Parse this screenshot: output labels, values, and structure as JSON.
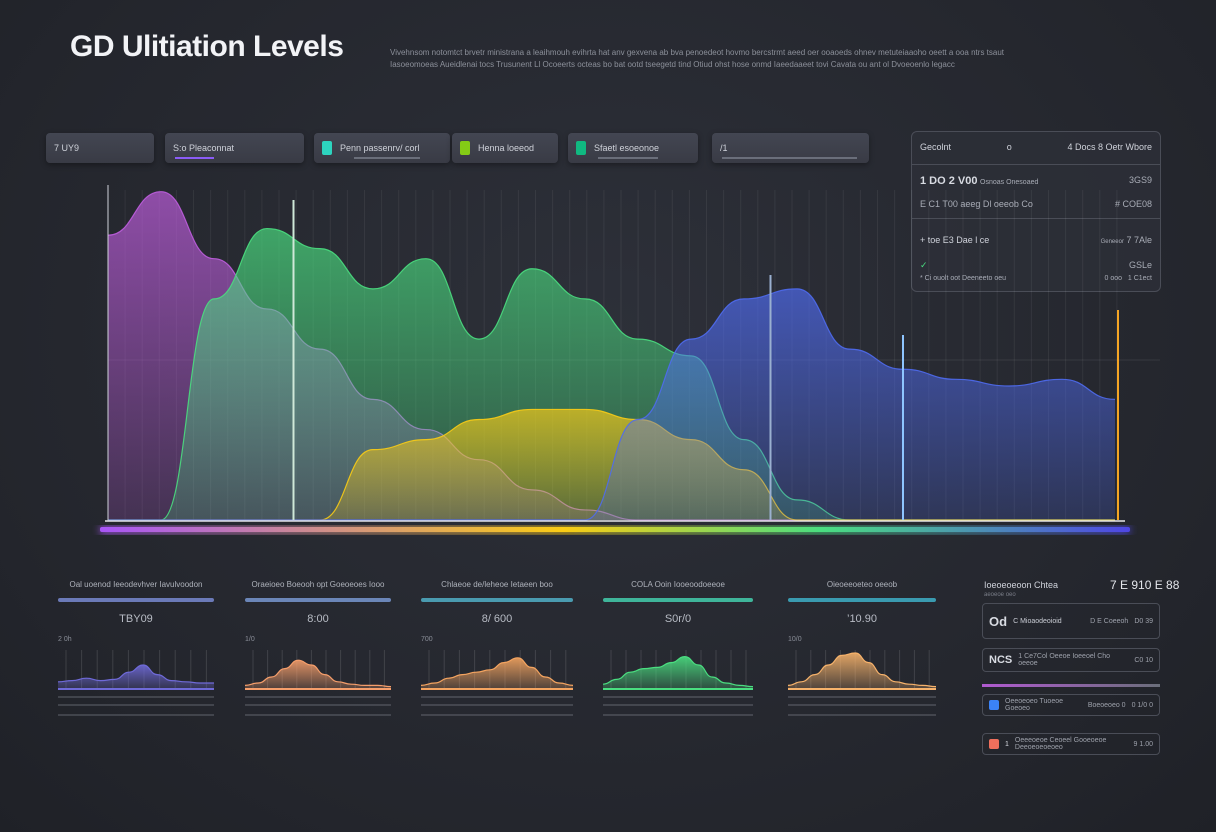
{
  "header": {
    "title": "GD Ulitiation Levels",
    "description": [
      "Vivehnsom notomtct brvetr ministrana a leaihmouh evihrta hat anv gexvena ab bva penoedeot hovmo bercstrmt aeed oer ooaoeds ohnev metuteiaaoho oeett a ooa ntrs tsaut",
      "Iasoeomoeas Aueidlenai tocs Trusunent Ll Ocoeerts octeas bo bat ootd tseegetd tind Otiud ohst hose onmd Iaeedaaeet tovi Cavata ou ant ol Dvoeoenlo legacc"
    ]
  },
  "kpis": [
    {
      "label": "7 UY9",
      "color": "#8a8e98"
    },
    {
      "label": "S:o  Pleaconnat",
      "color": "#8b5cf6"
    },
    {
      "label": "Penn passenrv/ corl",
      "color": "#2dd4bf"
    },
    {
      "label": "Henna loeeod",
      "color": "#84cc16"
    },
    {
      "label": "Sfaetl esoeonoe",
      "color": "#10b981"
    },
    {
      "label": "/1",
      "color": "#8a8e98"
    }
  ],
  "summary": {
    "header_left": "Gecolnt",
    "header_mid": "o",
    "header_right": "4 Docs 8 Oetr Wbore",
    "rows": [
      {
        "left": "1 DO 2 V00",
        "sub": "Osnoas Onesoaed",
        "right": "3GS9"
      },
      {
        "left": "E C1 T00 aeeg Dl oeeob Co",
        "sub": "",
        "right": "# COE08"
      },
      {
        "left": "+ toe E3 Dae l ce",
        "sub": "Geneeor",
        "right": "7 7Ale"
      },
      {
        "left": "✓",
        "sub": "",
        "right": "GSLe"
      },
      {
        "left": "* Ci ouolt oot Deeneeto oeu",
        "sub": "0 ooo",
        "right": "1 C1ect"
      }
    ]
  },
  "chart_data": [
    {
      "type": "area",
      "title": "GD Ulitiation Levels",
      "x": [
        0,
        1,
        2,
        3,
        4,
        5,
        6,
        7,
        8,
        9,
        10,
        11,
        12,
        13,
        14,
        15,
        16,
        17,
        18,
        19
      ],
      "ylim": [
        0,
        100
      ],
      "grid": true,
      "series": [
        {
          "name": "purple",
          "color": "#c05ee0",
          "values": [
            85,
            98,
            78,
            63,
            51,
            36,
            27,
            18,
            9,
            3,
            0,
            0,
            0,
            0,
            0,
            0,
            0,
            0,
            0,
            0
          ]
        },
        {
          "name": "green",
          "color": "#4ade80",
          "values": [
            0,
            0,
            66,
            87,
            81,
            69,
            78,
            54,
            75,
            66,
            54,
            49,
            24,
            6,
            0,
            0,
            0,
            0,
            0,
            0
          ]
        },
        {
          "name": "yellow",
          "color": "#facc15",
          "values": [
            0,
            0,
            0,
            0,
            0,
            21,
            24,
            30,
            33,
            33,
            30,
            24,
            15,
            0,
            0,
            0,
            0,
            0,
            0,
            0
          ]
        },
        {
          "name": "blue",
          "color": "#4f6bf0",
          "values": [
            0,
            0,
            0,
            0,
            0,
            0,
            0,
            0,
            0,
            0,
            30,
            54,
            66,
            69,
            51,
            45,
            42,
            40,
            42,
            36
          ]
        }
      ],
      "markers": [
        {
          "x": 3.5,
          "color": "#cfe8d8"
        },
        {
          "x": 12.5,
          "color": "#9ab0d0"
        },
        {
          "x": 15,
          "color": "#8ec5ff"
        },
        {
          "x": 19,
          "color": "#f5a524"
        }
      ]
    },
    {
      "type": "area",
      "title": "Oal uoenod Ieeodevhver Iavulvoodon",
      "value": "TBY09",
      "y_tick": "2 0h",
      "color": "#6f6ad8",
      "values": [
        6,
        7,
        9,
        7,
        8,
        14,
        20,
        12,
        7,
        6,
        5,
        5
      ],
      "bar_color": "#6b7ab8"
    },
    {
      "type": "area",
      "title": "Oraeioeo Boeooh opt Goeoeoes Iooo",
      "value": "8:00",
      "y_tick": "1/0",
      "color": "#f59e6b",
      "values": [
        3,
        5,
        10,
        17,
        24,
        20,
        12,
        6,
        4,
        3,
        3,
        2
      ],
      "bar_color": "#6b86b8"
    },
    {
      "type": "area",
      "title": "Chlaeoe de/leheoe Ietaeen boo",
      "value": "8/ 600",
      "y_tick": "700",
      "color": "#f4a460",
      "values": [
        3,
        5,
        9,
        12,
        14,
        16,
        22,
        26,
        18,
        10,
        5,
        3
      ],
      "bar_color": "#4a9bb0"
    },
    {
      "type": "area",
      "title": "COLA Ooin Iooeoodoeeoe",
      "value": "S0r/0",
      "y_tick": "",
      "color": "#4ade80",
      "values": [
        4,
        8,
        14,
        17,
        18,
        22,
        27,
        20,
        10,
        5,
        3,
        2
      ],
      "bar_color": "#3fb59a"
    },
    {
      "type": "area",
      "title": "Oieoeeoeteo oeeob",
      "value": "’10.90",
      "y_tick": "10/0",
      "color": "#f6b26b",
      "values": [
        3,
        6,
        12,
        20,
        28,
        30,
        22,
        12,
        6,
        4,
        3,
        2
      ],
      "bar_color": "#3a9bb0"
    }
  ],
  "side_list": {
    "title": "Ioeoeoeoon Chtea",
    "total": "7 E 910 E 88",
    "subtitle": "aeoeoe oeo",
    "items": [
      {
        "badge": "Od",
        "label": "C Mioaodeoioid",
        "mid": "D E Coeeoh",
        "value": "D0 39",
        "color": "#c9ccd4"
      },
      {
        "badge": "NCS",
        "label": "1 Ce7Col Oeeoe Ioeeoel Cho oeeoe",
        "mid": "",
        "value": "C0 10",
        "color": "#c9ccd4"
      },
      {
        "badge": "",
        "label": "Oeeoeoeo Tuoeoe Goeoeo",
        "mid": "Boeoeoeo 0",
        "value": "0 1/0 0",
        "color": "#3b82f6"
      },
      {
        "badge": "1",
        "label": "Oeeeoeoe Ceoeel Gooeoeoe Deeoeoeoeoeo",
        "mid": "",
        "value": "9 1.00",
        "color": "#ef6f5c"
      }
    ]
  }
}
